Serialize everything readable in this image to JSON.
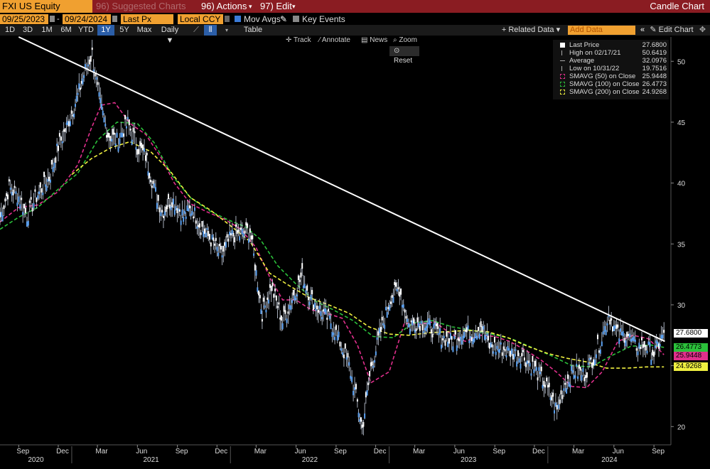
{
  "topbar": {
    "ticker": "FXI US Equity",
    "suggested": "96) Suggested Charts",
    "actions": "96) Actions",
    "edit": "97) Edit",
    "title": "Candle Chart"
  },
  "controls": {
    "start_date": "09/25/2023",
    "end_date": "09/24/2024",
    "price_field": "Last Px",
    "currency": "Local CCY",
    "mov_avgs": "Mov Avgs",
    "key_events": "Key Events"
  },
  "periods": [
    "1D",
    "3D",
    "1M",
    "6M",
    "YTD",
    "1Y",
    "5Y",
    "Max"
  ],
  "selected_period": "1Y",
  "frequency": "Daily",
  "table_label": "Table",
  "related_data": "Related Data",
  "add_data_placeholder": "Add Data",
  "edit_chart": "Edit Chart",
  "tools": {
    "track": "Track",
    "annotate": "Annotate",
    "news": "News",
    "zoom": "Zoom",
    "reset": "Reset"
  },
  "legend": [
    {
      "key": "Last Price",
      "value": "27.6800",
      "color": "#ffffff"
    },
    {
      "key": "High on 02/17/21",
      "value": "50.6419",
      "color": "#ffffff"
    },
    {
      "key": "Average",
      "value": "32.0976",
      "color": "#ffffff"
    },
    {
      "key": "Low on 10/31/22",
      "value": "19.7516",
      "color": "#ffffff"
    },
    {
      "key": "SMAVG (50)  on Close",
      "value": "25.9448",
      "color": "#e02f8c"
    },
    {
      "key": "SMAVG (100)  on Close",
      "value": "26.4773",
      "color": "#2bc03a"
    },
    {
      "key": "SMAVG (200)  on Close",
      "value": "24.9268",
      "color": "#f0f040"
    }
  ],
  "price_tags": [
    {
      "value": "27.6800",
      "color": "#ffffff",
      "bg": "#ffffff"
    },
    {
      "value": "26.4773",
      "color": "#2bc03a",
      "bg": "#2bc03a"
    },
    {
      "value": "25.9448",
      "color": "#e02f8c",
      "bg": "#e02f8c"
    },
    {
      "value": "24.9268",
      "color": "#f0f040",
      "bg": "#f0f040"
    }
  ],
  "chart_data": {
    "type": "line",
    "ylim": [
      18.5,
      52
    ],
    "yticks": [
      20,
      25,
      30,
      35,
      40,
      45,
      50
    ],
    "xlim": [
      "2020-07-20",
      "2024-10-10"
    ],
    "x_month_labels": [
      "Sep",
      "Dec",
      "Mar",
      "Jun",
      "Sep",
      "Dec",
      "Mar",
      "Jun",
      "Sep",
      "Dec",
      "Mar",
      "Jun",
      "Sep",
      "Dec",
      "Mar",
      "Jun",
      "Sep"
    ],
    "x_year_labels": [
      "2020",
      "2021",
      "2022",
      "2023",
      "2024"
    ],
    "series": [
      {
        "name": "Last Price",
        "color": "#5aa0f0",
        "x": [
          "2020-07-20",
          "2020-08-10",
          "2020-09-01",
          "2020-09-20",
          "2020-10-15",
          "2020-11-10",
          "2020-12-01",
          "2020-12-20",
          "2021-01-15",
          "2021-02-01",
          "2021-02-17",
          "2021-03-05",
          "2021-03-25",
          "2021-04-15",
          "2021-05-10",
          "2021-06-01",
          "2021-06-20",
          "2021-07-10",
          "2021-07-28",
          "2021-08-20",
          "2021-09-15",
          "2021-10-05",
          "2021-10-25",
          "2021-11-20",
          "2021-12-10",
          "2022-01-05",
          "2022-01-25",
          "2022-02-15",
          "2022-03-10",
          "2022-03-15",
          "2022-04-05",
          "2022-05-01",
          "2022-05-20",
          "2022-06-15",
          "2022-07-05",
          "2022-07-25",
          "2022-08-20",
          "2022-09-10",
          "2022-10-01",
          "2022-10-20",
          "2022-10-31",
          "2022-11-20",
          "2022-12-10",
          "2023-01-05",
          "2023-01-25",
          "2023-02-15",
          "2023-03-10",
          "2023-04-05",
          "2023-05-01",
          "2023-05-25",
          "2023-06-20",
          "2023-07-10",
          "2023-07-31",
          "2023-08-20",
          "2023-09-15",
          "2023-10-10",
          "2023-11-05",
          "2023-11-30",
          "2023-12-20",
          "2024-01-10",
          "2024-01-22",
          "2024-02-10",
          "2024-03-01",
          "2024-03-25",
          "2024-04-15",
          "2024-05-01",
          "2024-05-20",
          "2024-06-10",
          "2024-07-01",
          "2024-07-20",
          "2024-08-10",
          "2024-09-01",
          "2024-09-15",
          "2024-09-24"
        ],
        "values": [
          37.2,
          39.6,
          38.9,
          37.3,
          39.1,
          40.4,
          43.0,
          44.6,
          47.2,
          49.3,
          50.6,
          46.8,
          44.0,
          43.5,
          44.9,
          43.0,
          42.2,
          39.5,
          37.6,
          38.7,
          37.3,
          37.9,
          36.4,
          35.2,
          34.0,
          35.7,
          35.8,
          36.1,
          30.5,
          29.3,
          31.5,
          28.6,
          30.3,
          32.4,
          30.5,
          29.6,
          28.6,
          26.9,
          25.0,
          21.9,
          19.8,
          24.8,
          27.5,
          30.7,
          31.3,
          28.4,
          28.6,
          28.2,
          27.4,
          27.0,
          27.8,
          27.6,
          28.3,
          26.6,
          26.4,
          26.1,
          25.8,
          24.8,
          23.8,
          22.3,
          21.3,
          23.6,
          24.6,
          24.3,
          25.7,
          27.0,
          29.2,
          27.5,
          27.6,
          26.6,
          26.7,
          26.0,
          27.0,
          27.7
        ]
      },
      {
        "name": "SMAVG (50)  on Close",
        "color": "#e02f8c",
        "x": [
          "2020-07-20",
          "2020-09-01",
          "2020-10-15",
          "2020-12-01",
          "2021-01-15",
          "2021-02-15",
          "2021-03-10",
          "2021-04-10",
          "2021-05-15",
          "2021-06-20",
          "2021-07-25",
          "2021-08-25",
          "2021-10-01",
          "2021-11-10",
          "2021-12-20",
          "2022-01-25",
          "2022-03-01",
          "2022-04-01",
          "2022-05-01",
          "2022-06-01",
          "2022-07-05",
          "2022-08-10",
          "2022-09-15",
          "2022-10-20",
          "2022-11-20",
          "2023-01-01",
          "2023-02-05",
          "2023-03-10",
          "2023-04-15",
          "2023-05-20",
          "2023-06-25",
          "2023-07-30",
          "2023-09-01",
          "2023-10-05",
          "2023-11-10",
          "2023-12-15",
          "2024-01-20",
          "2024-02-25",
          "2024-03-30",
          "2024-05-05",
          "2024-06-10",
          "2024-07-15",
          "2024-08-20",
          "2024-09-24"
        ],
        "values": [
          36.8,
          38.0,
          38.2,
          39.3,
          41.5,
          44.5,
          46.4,
          46.6,
          44.9,
          44.0,
          42.1,
          40.0,
          38.3,
          37.6,
          37.0,
          36.2,
          34.7,
          32.3,
          30.4,
          30.4,
          29.6,
          29.3,
          28.9,
          26.7,
          23.6,
          24.5,
          28.5,
          28.4,
          28.6,
          27.7,
          27.0,
          27.5,
          27.4,
          27.0,
          26.3,
          25.5,
          24.5,
          23.3,
          23.2,
          24.5,
          27.0,
          27.5,
          27.2,
          25.9
        ]
      },
      {
        "name": "SMAVG (100)  on Close",
        "color": "#2bc03a",
        "x": [
          "2020-07-20",
          "2020-09-01",
          "2020-10-15",
          "2020-12-01",
          "2021-01-15",
          "2021-03-01",
          "2021-04-15",
          "2021-06-01",
          "2021-07-10",
          "2021-08-20",
          "2021-10-01",
          "2021-11-15",
          "2021-12-25",
          "2022-02-05",
          "2022-03-10",
          "2022-04-20",
          "2022-06-01",
          "2022-07-15",
          "2022-08-25",
          "2022-10-10",
          "2022-11-25",
          "2023-01-10",
          "2023-02-25",
          "2023-04-10",
          "2023-05-25",
          "2023-07-10",
          "2023-08-25",
          "2023-10-10",
          "2023-11-25",
          "2024-01-10",
          "2024-02-25",
          "2024-04-10",
          "2024-05-25",
          "2024-07-10",
          "2024-08-25",
          "2024-09-24"
        ],
        "values": [
          36.2,
          37.2,
          38.0,
          39.5,
          40.8,
          43.5,
          45.0,
          44.9,
          43.3,
          40.6,
          38.8,
          37.7,
          37.0,
          36.4,
          35.4,
          33.2,
          31.7,
          30.3,
          29.6,
          28.7,
          27.4,
          27.3,
          28.5,
          28.7,
          28.2,
          27.9,
          27.6,
          27.2,
          26.5,
          25.8,
          25.0,
          24.9,
          25.8,
          26.6,
          26.7,
          26.5
        ]
      },
      {
        "name": "SMAVG (200)  on Close",
        "color": "#f0f040",
        "x": [
          "2021-01-01",
          "2021-02-15",
          "2021-04-01",
          "2021-05-15",
          "2021-07-01",
          "2021-08-15",
          "2021-10-01",
          "2021-11-15",
          "2022-01-01",
          "2022-02-15",
          "2022-04-01",
          "2022-05-15",
          "2022-07-01",
          "2022-08-15",
          "2022-10-01",
          "2022-11-15",
          "2023-01-01",
          "2023-02-15",
          "2023-04-01",
          "2023-05-15",
          "2023-07-01",
          "2023-08-15",
          "2023-10-01",
          "2023-11-15",
          "2024-01-01",
          "2024-02-15",
          "2024-04-01",
          "2024-05-15",
          "2024-07-01",
          "2024-08-15",
          "2024-09-24"
        ],
        "values": [
          40.7,
          42.0,
          42.9,
          43.4,
          42.6,
          41.0,
          38.8,
          37.8,
          36.5,
          35.2,
          32.6,
          31.6,
          30.6,
          30.0,
          29.3,
          28.2,
          27.6,
          27.5,
          27.7,
          27.8,
          27.9,
          27.8,
          27.3,
          26.6,
          26.0,
          25.6,
          25.3,
          24.8,
          24.8,
          24.9,
          24.9
        ]
      },
      {
        "name": "Trendline",
        "color": "#ffffff",
        "x": [
          "2020-09-01",
          "2024-09-26"
        ],
        "values": [
          52.0,
          27.0
        ]
      }
    ]
  }
}
